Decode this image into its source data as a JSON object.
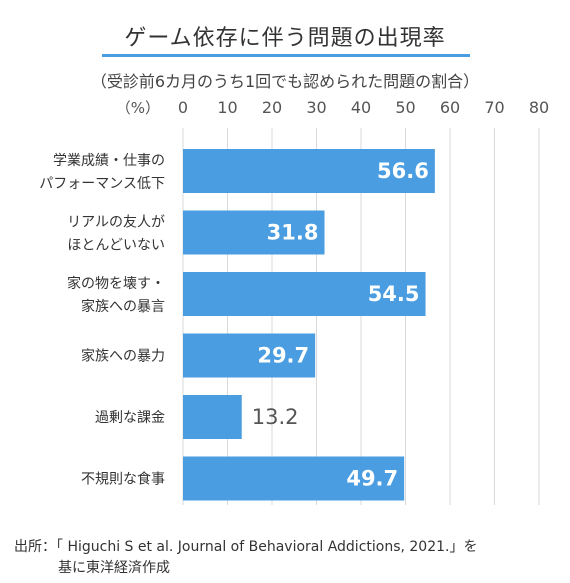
{
  "title": "ゲーム依存に伴う問題の出現率",
  "subtitle": "（受診前6カ月のうち1回でも認められた問題の割合）",
  "colors": {
    "bar": "#4a9de0",
    "grid": "#d9d9d9",
    "accent": "#4a9de0"
  },
  "chart_data": {
    "type": "bar",
    "orientation": "horizontal",
    "unit_label": "（%）",
    "xlim": [
      0,
      80
    ],
    "ticks": [
      0,
      10,
      20,
      30,
      40,
      50,
      60,
      70,
      80
    ],
    "grid": true,
    "categories": [
      [
        "学業成績・仕事の",
        "パフォーマンス低下"
      ],
      [
        "リアルの友人が",
        "ほとんどいない"
      ],
      [
        "家の物を壊す・",
        "家族への暴言"
      ],
      [
        "家族への暴力"
      ],
      [
        "過剰な課金"
      ],
      [
        "不規則な食事"
      ]
    ],
    "values": [
      56.6,
      31.8,
      54.5,
      29.7,
      13.2,
      49.7
    ],
    "value_labels": [
      "56.6",
      "31.8",
      "54.5",
      "29.7",
      "13.2",
      "49.7"
    ]
  },
  "source": {
    "line1": "出所：「 Higuchi S et al. Journal of Behavioral Addictions, 2021.」を",
    "line2": "基に東洋経済作成"
  }
}
